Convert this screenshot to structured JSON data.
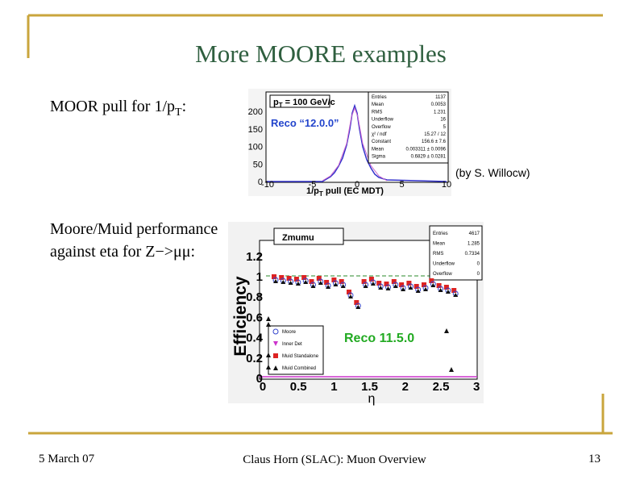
{
  "slide": {
    "title": "More MOORE examples",
    "item1": [
      "MOOR pull for 1/p",
      "T",
      ":"
    ],
    "item2": {
      "line1": "Moore/Muid performance",
      "line2": "against eta for Z−>μμ:"
    },
    "credit": "(by S. Willocw)",
    "plot1": {
      "title": [
        "p",
        "T",
        " = 100 GeV/c"
      ],
      "label": "Reco “12.0.0”",
      "xlabel": [
        "1/p",
        "T",
        " pull (EC MDT)"
      ],
      "xticks": [
        "-10",
        "-5",
        "0",
        "5",
        "10"
      ],
      "yticks": [
        "0",
        "50",
        "100",
        "150",
        "200"
      ],
      "stats": [
        [
          "Entries",
          "1137"
        ],
        [
          "Mean",
          "0.0053"
        ],
        [
          "RMS",
          "1.231"
        ],
        [
          "Underflow",
          "16"
        ],
        [
          "Overflow",
          "5"
        ],
        [
          "χ² / ndf",
          "15.27 / 12"
        ],
        [
          "Constant",
          "156.6 ± 7.6"
        ],
        [
          "Mean",
          "0.003311 ± 0.0096"
        ],
        [
          "Sigma",
          "0.6829 ± 0.0281"
        ]
      ]
    },
    "plot2": {
      "title": "Zmumu",
      "label": "Reco 11.5.0",
      "ylabel": "Efficiency",
      "xlabel": "η",
      "xticks": [
        "0",
        "0.5",
        "1",
        "1.5",
        "2",
        "2.5",
        "3"
      ],
      "yticks": [
        "0",
        "0.2",
        "0.4",
        "0.6",
        "0.8",
        "1",
        "1.2"
      ],
      "stats": [
        [
          "Entries",
          "4617"
        ],
        [
          "Mean",
          "1.285"
        ],
        [
          "RMS",
          "0.7334"
        ],
        [
          "Underflow",
          "0"
        ],
        [
          "Overflow",
          "0"
        ]
      ],
      "legend": [
        "Moore",
        "Inner Det",
        "Muid Standalone",
        "Muid Combined"
      ]
    },
    "footer": {
      "date": "5 March 07",
      "center": "Claus Horn (SLAC): Muon Overview",
      "page": "13"
    }
  }
}
